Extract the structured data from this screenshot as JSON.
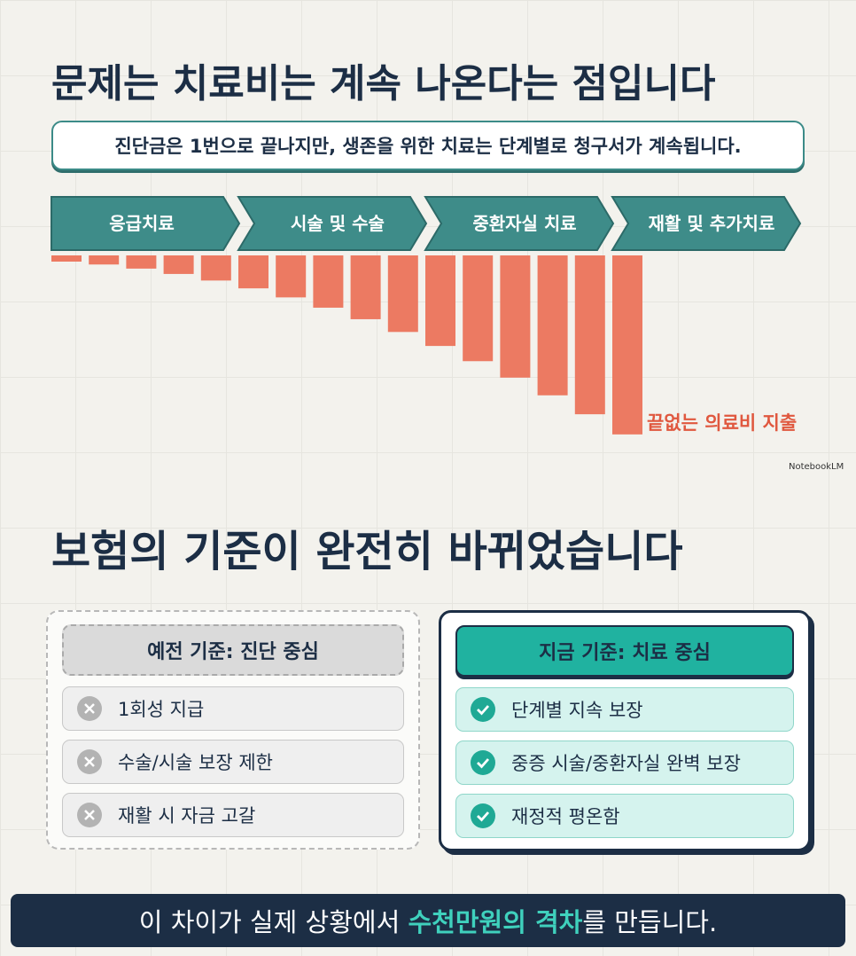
{
  "title": "문제는 치료비는 계속 나온다는 점입니다",
  "subtitle": "진단금은 1번으로 끝나지만, 생존을 위한 치료는 단계별로 청구서가 계속됩니다.",
  "stages": [
    "응급치료",
    "시술 및 수술",
    "중환자실 치료",
    "재활 및 추가치료"
  ],
  "bar_label": "끝없는 의료비 지출",
  "watermark": "NotebookLM",
  "section2": {
    "title": "보험의 기준이 완전히 바뀌었습니다",
    "old": {
      "header": "예전 기준: 진단 중심",
      "items": [
        "1회성 지급",
        "수술/시술 보장 제한",
        "재활 시 자금 고갈"
      ]
    },
    "new": {
      "header": "지금 기준: 치료 중심",
      "items": [
        "단계별 지속 보장",
        "중증 시술/중환자실 완벽 보장",
        "재정적 평온함"
      ]
    }
  },
  "footer": {
    "before": "이 차이가 실제 상황에서 ",
    "highlight": "수천만원의 격차",
    "after": "를 만듭니다."
  }
}
